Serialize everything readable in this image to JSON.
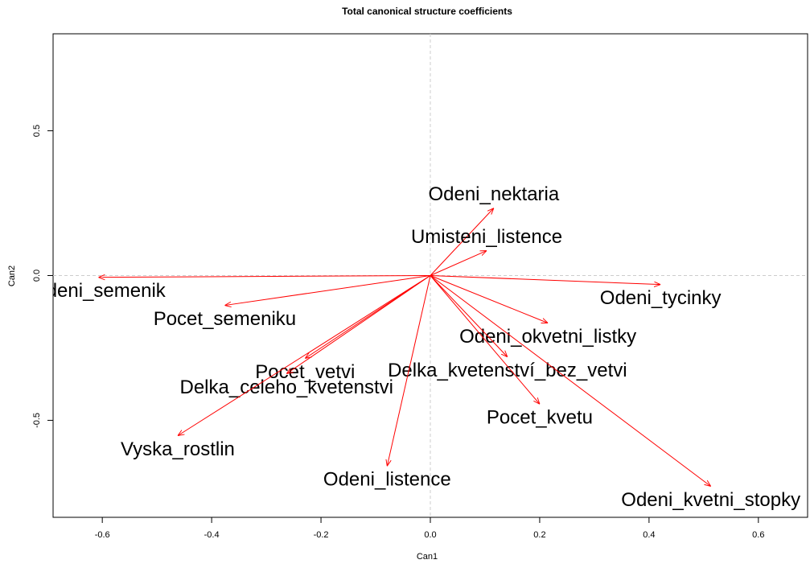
{
  "chart_data": {
    "type": "vector",
    "title": "Total canonical structure coefficients",
    "x_label": "Can1",
    "y_label": "Can2",
    "xlim": [
      -0.69,
      0.69
    ],
    "ylim": [
      -0.835,
      0.835
    ],
    "xticks": [
      -0.6,
      -0.4,
      -0.2,
      {
        "value": 0,
        "label": "0.0"
      },
      0.2,
      0.4,
      0.6
    ],
    "yticks": [
      -0.5,
      {
        "value": 0,
        "label": "0.0"
      },
      0.5
    ],
    "zero_lines": true,
    "color": "#ff0000",
    "vectors": [
      {
        "name": "Odeni_nektaria",
        "x": 0.116,
        "y": 0.233
      },
      {
        "name": "Umisteni_listence",
        "x": 0.103,
        "y": 0.086
      },
      {
        "name": "Odeni_semenik",
        "x": -0.607,
        "y": -0.006
      },
      {
        "name": "Odeni_tycinky",
        "x": 0.421,
        "y": -0.031
      },
      {
        "name": "Pocet_semeniku",
        "x": -0.376,
        "y": -0.103
      },
      {
        "name": "Odeni_okvetni_listky",
        "x": 0.215,
        "y": -0.164
      },
      {
        "name": "Pocet_vetvi",
        "x": -0.229,
        "y": -0.286
      },
      {
        "name": "Delka_kvetenství_bez_vetvi",
        "x": 0.141,
        "y": -0.281
      },
      {
        "name": "Delka_celeho_kvetenstvi",
        "x": -0.263,
        "y": -0.339
      },
      {
        "name": "Pocet_kvetu",
        "x": 0.2,
        "y": -0.444
      },
      {
        "name": "Vyska_rostlin",
        "x": -0.462,
        "y": -0.553
      },
      {
        "name": "Odeni_listence",
        "x": -0.079,
        "y": -0.658
      },
      {
        "name": "Odeni_kvetni_stopky",
        "x": 0.513,
        "y": -0.728
      }
    ]
  }
}
